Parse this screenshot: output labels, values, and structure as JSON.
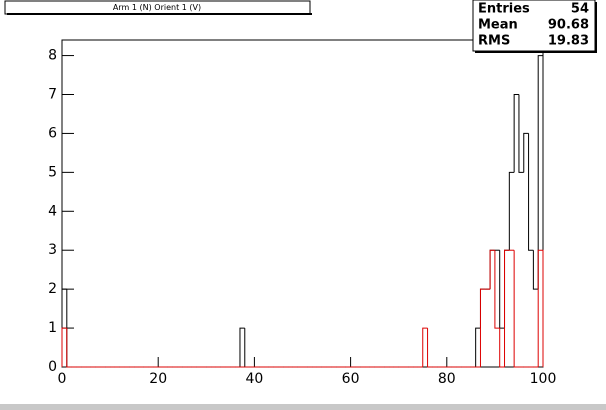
{
  "chart_data": {
    "type": "histogram",
    "title": "Arm 1 (N) Orient 1 (V)",
    "bins": [
      0,
      1,
      2,
      3,
      4,
      5,
      6,
      7,
      8,
      9,
      10,
      11,
      12,
      13,
      14,
      15,
      16,
      17,
      18,
      19,
      20,
      21,
      22,
      23,
      24,
      25,
      26,
      27,
      28,
      29,
      30,
      31,
      32,
      33,
      34,
      35,
      36,
      37,
      38,
      39,
      40,
      41,
      42,
      43,
      44,
      45,
      46,
      47,
      48,
      49,
      50,
      51,
      52,
      53,
      54,
      55,
      56,
      57,
      58,
      59,
      60,
      61,
      62,
      63,
      64,
      65,
      66,
      67,
      68,
      69,
      70,
      71,
      72,
      73,
      74,
      75,
      76,
      77,
      78,
      79,
      80,
      81,
      82,
      83,
      84,
      85,
      86,
      87,
      88,
      89,
      90,
      91,
      92,
      93,
      94,
      95,
      96,
      97,
      98,
      99,
      100
    ],
    "series": [
      {
        "color": "#000000",
        "values": [
          2,
          0,
          0,
          0,
          0,
          0,
          0,
          0,
          0,
          0,
          0,
          0,
          0,
          0,
          0,
          0,
          0,
          0,
          0,
          0,
          0,
          0,
          0,
          0,
          0,
          0,
          0,
          0,
          0,
          0,
          0,
          0,
          0,
          0,
          0,
          0,
          0,
          1,
          0,
          0,
          0,
          0,
          0,
          0,
          0,
          0,
          0,
          0,
          0,
          0,
          0,
          0,
          0,
          0,
          0,
          0,
          0,
          0,
          0,
          0,
          0,
          0,
          0,
          0,
          0,
          0,
          0,
          0,
          0,
          0,
          0,
          0,
          0,
          0,
          0,
          0,
          0,
          0,
          0,
          0,
          0,
          0,
          0,
          0,
          0,
          0,
          1,
          2,
          2,
          3,
          3,
          1,
          3,
          5,
          7,
          5,
          6,
          3,
          2,
          8
        ]
      },
      {
        "color": "#dd0000",
        "values": [
          1,
          0,
          0,
          0,
          0,
          0,
          0,
          0,
          0,
          0,
          0,
          0,
          0,
          0,
          0,
          0,
          0,
          0,
          0,
          0,
          0,
          0,
          0,
          0,
          0,
          0,
          0,
          0,
          0,
          0,
          0,
          0,
          0,
          0,
          0,
          0,
          0,
          0,
          0,
          0,
          0,
          0,
          0,
          0,
          0,
          0,
          0,
          0,
          0,
          0,
          0,
          0,
          0,
          0,
          0,
          0,
          0,
          0,
          0,
          0,
          0,
          0,
          0,
          0,
          0,
          0,
          0,
          0,
          0,
          0,
          0,
          0,
          0,
          0,
          0,
          1,
          0,
          0,
          0,
          0,
          0,
          0,
          0,
          0,
          0,
          0,
          0,
          2,
          2,
          3,
          1,
          0,
          3,
          3,
          0,
          0,
          0,
          0,
          0,
          3
        ]
      }
    ],
    "xlim": [
      0,
      100
    ],
    "ylim": [
      0,
      8.4
    ],
    "xticks": [
      0,
      20,
      40,
      60,
      80,
      100
    ],
    "yticks": [
      0,
      1,
      2,
      3,
      4,
      5,
      6,
      7,
      8
    ],
    "stats": [
      {
        "label": "Entries",
        "value": 54
      },
      {
        "label": "Mean",
        "value": 90.68
      },
      {
        "label": "RMS",
        "value": 19.83
      }
    ]
  }
}
